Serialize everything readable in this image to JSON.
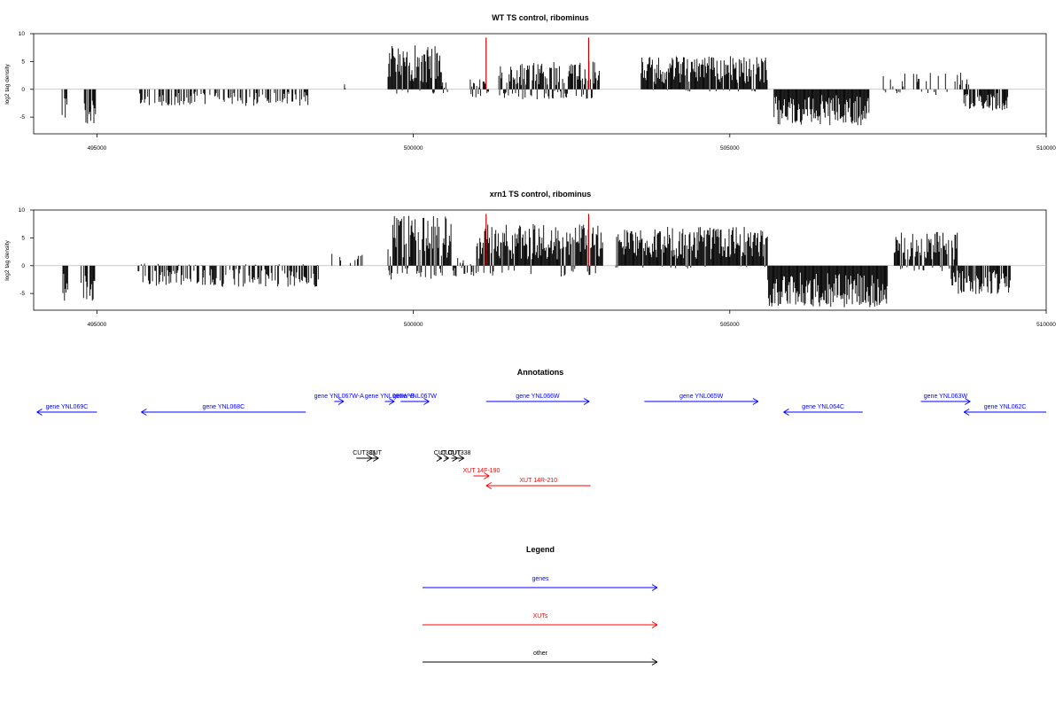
{
  "chart_data": [
    {
      "type": "bar",
      "title": "WT TS control, ribominus",
      "xlabel": "",
      "ylabel": "log2 tag density",
      "xlim": [
        494000,
        510000
      ],
      "ylim": [
        -8,
        10
      ],
      "xticks": [
        495000,
        500000,
        505000,
        510000
      ],
      "yticks": [
        -5,
        0,
        5,
        10
      ],
      "grid": false,
      "baseline_color": "#bbbbbb",
      "bar_color": "#000000",
      "marker_color": "#cc0000",
      "markers_x": [
        501150,
        502770
      ],
      "segments": [
        {
          "start": 494450,
          "end": 494550,
          "min": -6.0,
          "max": 0,
          "density": 0.9
        },
        {
          "start": 494800,
          "end": 495000,
          "min": -6.2,
          "max": 0,
          "density": 0.7
        },
        {
          "start": 495650,
          "end": 498350,
          "min": -3.0,
          "max": 0,
          "density": 0.45
        },
        {
          "start": 498900,
          "end": 498950,
          "min": 0,
          "max": 1.0,
          "density": 0.5
        },
        {
          "start": 499600,
          "end": 500450,
          "min": -1.0,
          "max": 8.0,
          "density": 1.0
        },
        {
          "start": 500450,
          "end": 500550,
          "min": -1.0,
          "max": 1.5,
          "density": 0.5
        },
        {
          "start": 500900,
          "end": 501200,
          "min": -1.5,
          "max": 2.0,
          "density": 0.6
        },
        {
          "start": 501350,
          "end": 502950,
          "min": -1.8,
          "max": 5.0,
          "density": 0.9
        },
        {
          "start": 503600,
          "end": 505600,
          "min": -0.5,
          "max": 6.0,
          "density": 1.0
        },
        {
          "start": 505700,
          "end": 507200,
          "min": -6.5,
          "max": 0,
          "density": 1.0
        },
        {
          "start": 507400,
          "end": 508800,
          "min": -1.0,
          "max": 3.0,
          "density": 0.35
        },
        {
          "start": 508700,
          "end": 509400,
          "min": -3.8,
          "max": 0,
          "density": 0.8
        }
      ]
    },
    {
      "type": "bar",
      "title": "xrn1 TS control, ribominus",
      "xlabel": "",
      "ylabel": "log2 tag density",
      "xlim": [
        494000,
        510000
      ],
      "ylim": [
        -8,
        10
      ],
      "xticks": [
        495000,
        500000,
        505000,
        510000
      ],
      "yticks": [
        -5,
        0,
        5,
        10
      ],
      "grid": false,
      "baseline_color": "#bbbbbb",
      "bar_color": "#000000",
      "marker_color": "#cc0000",
      "markers_x": [
        501150,
        502770
      ],
      "segments": [
        {
          "start": 494450,
          "end": 494550,
          "min": -6.3,
          "max": 0,
          "density": 0.9
        },
        {
          "start": 494750,
          "end": 494990,
          "min": -7.2,
          "max": 0,
          "density": 0.7
        },
        {
          "start": 495600,
          "end": 498500,
          "min": -3.8,
          "max": 0.5,
          "density": 0.6
        },
        {
          "start": 498700,
          "end": 499300,
          "min": 0,
          "max": 2.5,
          "density": 0.3
        },
        {
          "start": 499600,
          "end": 500600,
          "min": -2.5,
          "max": 9.0,
          "density": 1.0
        },
        {
          "start": 500600,
          "end": 501000,
          "min": -2.0,
          "max": 1.5,
          "density": 0.6
        },
        {
          "start": 501000,
          "end": 503000,
          "min": -2.0,
          "max": 7.5,
          "density": 1.0
        },
        {
          "start": 503200,
          "end": 505600,
          "min": -0.5,
          "max": 7.0,
          "density": 1.0
        },
        {
          "start": 505600,
          "end": 507500,
          "min": -7.5,
          "max": 0,
          "density": 1.0
        },
        {
          "start": 507600,
          "end": 508600,
          "min": -1.0,
          "max": 6.2,
          "density": 0.9
        },
        {
          "start": 508500,
          "end": 509450,
          "min": -5.2,
          "max": 0,
          "density": 0.9
        }
      ]
    }
  ],
  "annotations_title": "Annotations",
  "annotations": [
    {
      "label": "gene YNL069C",
      "type": "gene",
      "start": 495000,
      "end": 494050
    },
    {
      "label": "gene YNL068C",
      "type": "gene",
      "start": 498300,
      "end": 495700
    },
    {
      "label": "gene YNL067W-A",
      "type": "gene",
      "start": 498750,
      "end": 498900
    },
    {
      "label": "gene YNL066W-B",
      "type": "gene",
      "start": 499550,
      "end": 499700
    },
    {
      "label": "gene YNL067W",
      "type": "gene",
      "start": 499800,
      "end": 500250
    },
    {
      "label": "gene YNL066W",
      "type": "gene",
      "start": 501150,
      "end": 502780
    },
    {
      "label": "gene YNL065W",
      "type": "gene",
      "start": 503650,
      "end": 505450
    },
    {
      "label": "gene YNL064C",
      "type": "gene",
      "start": 507100,
      "end": 505850
    },
    {
      "label": "gene YNL063W",
      "type": "gene",
      "start": 508020,
      "end": 508800
    },
    {
      "label": "gene YNL062C",
      "type": "gene",
      "start": 510000,
      "end": 508700
    },
    {
      "label": "CUT",
      "type": "other",
      "start": 499350,
      "end": 499450
    },
    {
      "label": "CUT336",
      "type": "other",
      "start": 499100,
      "end": 499350
    },
    {
      "label": "CUT",
      "type": "other",
      "start": 500400,
      "end": 500450
    },
    {
      "label": "CUT",
      "type": "other",
      "start": 500500,
      "end": 500560
    },
    {
      "label": "CUT",
      "type": "other",
      "start": 500600,
      "end": 500700
    },
    {
      "label": "CUT338",
      "type": "other",
      "start": 500650,
      "end": 500800
    },
    {
      "label": "XUT 14F-190",
      "type": "xut",
      "start": 500950,
      "end": 501200
    },
    {
      "label": "XUT 14R-210",
      "type": "xut",
      "start": 502800,
      "end": 501150
    }
  ],
  "legend": {
    "title": "Legend",
    "items": [
      {
        "label": "genes",
        "color": "#0000ff"
      },
      {
        "label": "XUTs",
        "color": "#ff0000"
      },
      {
        "label": "other",
        "color": "#000000"
      }
    ]
  },
  "colors": {
    "gene": "#0000ff",
    "xut": "#ff0000",
    "other": "#000000"
  }
}
